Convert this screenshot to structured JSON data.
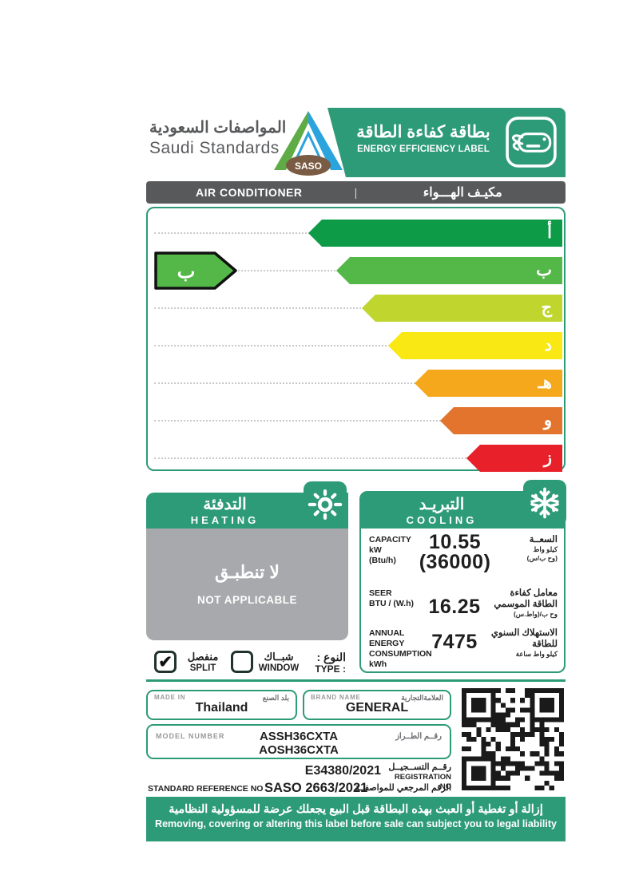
{
  "header": {
    "org_name_ar": "المواصفات السعودية",
    "org_name_en": "Saudi Standards",
    "saso_logo_text": "SASO",
    "title_ar": "بطاقة كفاءة الطاقة",
    "title_en": "ENERGY EFFICIENCY LABEL"
  },
  "product_bar": {
    "name_en": "AIR CONDITIONER",
    "separator": "|",
    "name_ar": "مكيـف الهـــواء"
  },
  "rating_scale": {
    "grades": [
      {
        "letter": "أ",
        "color": "#0D9B48"
      },
      {
        "letter": "ب",
        "color": "#54B848"
      },
      {
        "letter": "ج",
        "color": "#C0D62F"
      },
      {
        "letter": "د",
        "color": "#F9E814"
      },
      {
        "letter": "هـ",
        "color": "#F6A81C"
      },
      {
        "letter": "و",
        "color": "#E2742D"
      },
      {
        "letter": "ز",
        "color": "#E8202A"
      }
    ],
    "current_grade": "ب",
    "indicator_color": "#54B848"
  },
  "heating": {
    "title_ar": "التدفئة",
    "title_en": "HEATING",
    "status_ar": "لا تنطبـق",
    "status_en": "NOT APPLICABLE"
  },
  "cooling": {
    "title_ar": "التبريـد",
    "title_en": "COOLING",
    "capacity": {
      "label_en1": "CAPACITY",
      "label_en2": "kW",
      "label_en3": "(Btu/h)",
      "value": "10.55",
      "value_btu": "(36000)",
      "label_ar1": "السعــة",
      "label_ar2": "كيلو واط",
      "label_ar3": "(وح ب/س)"
    },
    "seer": {
      "label_en1": "SEER",
      "label_en2": "BTU / (W.h)",
      "value": "16.25",
      "label_ar1": "معامل كفاءة الطاقة الموسمي",
      "label_ar2": "وح ب/(واط.س)"
    },
    "annual": {
      "label_en1": "ANNUAL ENERGY",
      "label_en2": "CONSUMPTION",
      "label_en3": "kWh",
      "value": "7475",
      "label_ar1": "الاستهلاك السنوي",
      "label_ar2": "للطاقة",
      "label_ar3": "كيلو واط ساعة"
    }
  },
  "type_section": {
    "label_ar": "النوع :",
    "label_en": "TYPE :",
    "options": [
      {
        "label_ar": "منفصل",
        "label_en": "SPLIT",
        "checked": true,
        "mark": "✔"
      },
      {
        "label_ar": "شبــاك",
        "label_en": "WINDOW",
        "checked": false,
        "mark": ""
      }
    ]
  },
  "info": {
    "made_in": {
      "label_en": "MADE IN",
      "label_ar": "بلد الصنع",
      "value": "Thailand"
    },
    "brand": {
      "label_en": "BRAND NAME",
      "label_ar": "العلامةالتجارية",
      "value": "GENERAL"
    },
    "model": {
      "label_en": "MODEL NUMBER",
      "label_ar": "رقــم الطــراز",
      "value_line1": "ASSH36CXTA",
      "value_line2": "AOSH36CXTA"
    },
    "registration": {
      "value": "E34380/2021",
      "label_ar": "رقــم التســجيــل",
      "label_en": "REGISTRATION NO"
    },
    "standard": {
      "label_en": "STANDARD REFERENCE NO",
      "value": "SASO 2663/2021",
      "label_ar": "الرقم المرجعي للمواصفــة"
    }
  },
  "footer": {
    "line_ar": "إزالة أو تغطية أو العبث بهذه البطاقة قبل البيع يجعلك عرضة للمسؤولية النظامية",
    "line_en": "Removing, covering or altering this label before sale can subject you to legal liability"
  },
  "colors": {
    "brand_green": "#2E9B78",
    "product_bar_gray": "#58595B",
    "not_applicable_gray": "#A7A9AC",
    "grade_a": "#0D9B48",
    "grade_b": "#54B848",
    "grade_c": "#C0D62F",
    "grade_d": "#F9E814",
    "grade_e": "#F6A81C",
    "grade_f": "#E2742D",
    "grade_g": "#E8202A"
  }
}
